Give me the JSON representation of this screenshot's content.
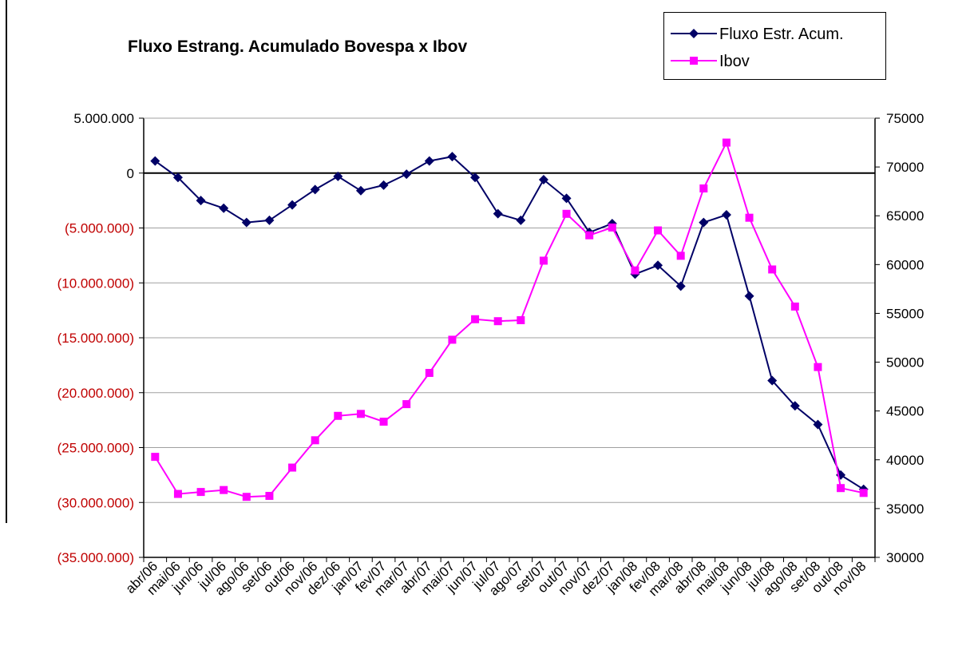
{
  "chart_data": {
    "type": "line",
    "title": "Fluxo Estrang. Acumulado Bovespa x Ibov",
    "categories": [
      "abr/06",
      "mai/06",
      "jun/06",
      "jul/06",
      "ago/06",
      "set/06",
      "out/06",
      "nov/06",
      "dez/06",
      "jan/07",
      "fev/07",
      "mar/07",
      "abr/07",
      "mai/07",
      "jun/07",
      "jul/07",
      "ago/07",
      "set/07",
      "out/07",
      "nov/07",
      "dez/07",
      "jan/08",
      "fev/08",
      "mar/08",
      "abr/08",
      "mai/08",
      "jun/08",
      "jul/08",
      "ago/08",
      "set/08",
      "out/08",
      "nov/08"
    ],
    "y_left": {
      "lim": [
        -35000000,
        5000000
      ],
      "ticks": [
        5000000,
        0,
        -5000000,
        -10000000,
        -15000000,
        -20000000,
        -25000000,
        -30000000,
        -35000000
      ],
      "tick_labels": [
        "5.000.000",
        "0",
        "(5.000.000)",
        "(10.000.000)",
        "(15.000.000)",
        "(20.000.000)",
        "(25.000.000)",
        "(30.000.000)",
        "(35.000.000)"
      ],
      "positive_color": "#000000",
      "negative_color": "#c00000"
    },
    "y_right": {
      "lim": [
        30000,
        75000
      ],
      "ticks": [
        75000,
        70000,
        65000,
        60000,
        55000,
        50000,
        45000,
        40000,
        35000,
        30000
      ],
      "tick_labels": [
        "75000",
        "70000",
        "65000",
        "60000",
        "55000",
        "50000",
        "45000",
        "40000",
        "35000",
        "30000"
      ]
    },
    "grid": true,
    "legend_position": "top-right",
    "series": [
      {
        "name": "Fluxo Estr. Acum.",
        "axis": "left",
        "color": "#000066",
        "marker": "diamond",
        "values": [
          1100000,
          -400000,
          -2500000,
          -3200000,
          -4500000,
          -4300000,
          -2900000,
          -1500000,
          -300000,
          -1600000,
          -1100000,
          -100000,
          1100000,
          1500000,
          -400000,
          -3700000,
          -4300000,
          -600000,
          -2300000,
          -5400000,
          -4600000,
          -9200000,
          -8400000,
          -10300000,
          -4500000,
          -3800000,
          -11200000,
          -18900000,
          -21200000,
          -22900000,
          -27500000,
          -28800000
        ]
      },
      {
        "name": "Ibov",
        "axis": "right",
        "color": "#ff00ff",
        "marker": "square",
        "values": [
          40300,
          36500,
          36700,
          36900,
          36200,
          36300,
          39200,
          42000,
          44500,
          44700,
          43900,
          45700,
          48900,
          52300,
          54400,
          54200,
          54300,
          60400,
          65200,
          63000,
          63800,
          59400,
          63500,
          60900,
          67800,
          72500,
          64800,
          59500,
          55700,
          49500,
          37100,
          36600
        ]
      }
    ]
  }
}
